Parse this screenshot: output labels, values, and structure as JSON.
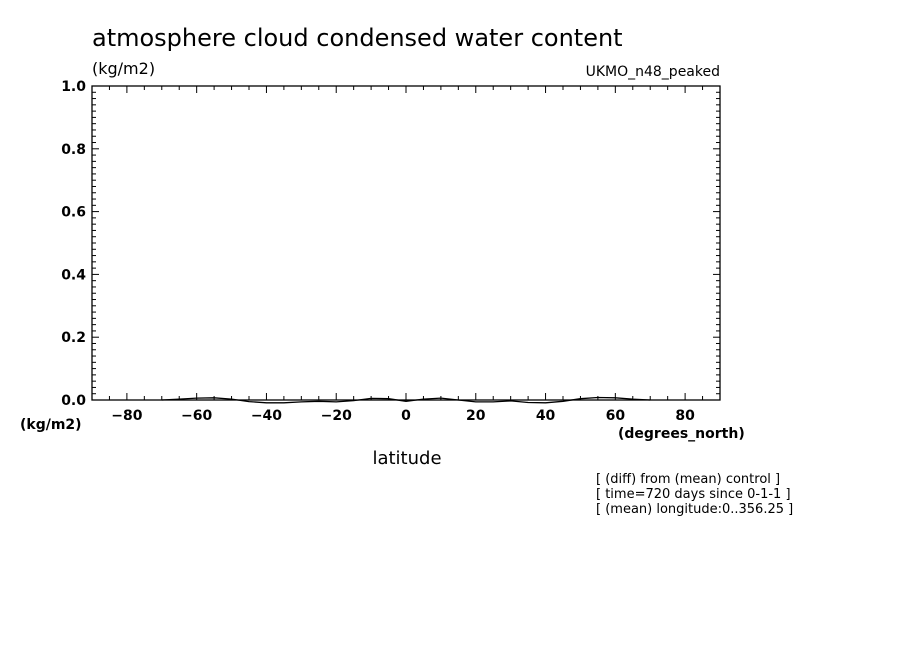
{
  "chart_data": {
    "type": "line",
    "title": "atmosphere cloud condensed water content",
    "units_label": "(kg/m2)",
    "model_label": "UKMO_n48_peaked",
    "ylabel_units": "(kg/m2)",
    "xlabel": "latitude",
    "xlabel_units": "(degrees_north)",
    "xlim": [
      -90,
      90
    ],
    "ylim": [
      0,
      1.0
    ],
    "x_ticks": [
      "-80",
      "-60",
      "-40",
      "-20",
      "0",
      "20",
      "40",
      "60",
      "80"
    ],
    "y_ticks": [
      "0.0",
      "0.2",
      "0.4",
      "0.6",
      "0.8",
      "1.0"
    ],
    "grid": false,
    "series": [
      {
        "x": [
          -70,
          -65,
          -60,
          -55,
          -50,
          -45,
          -40,
          -35,
          -30,
          -25,
          -20,
          -15,
          -10,
          -5,
          0,
          5,
          10,
          15,
          20,
          25,
          30,
          35,
          40,
          45,
          50,
          55,
          60,
          65,
          70
        ],
        "y": [
          0.0,
          0.003,
          0.006,
          0.007,
          0.003,
          -0.005,
          -0.009,
          -0.009,
          -0.006,
          -0.004,
          -0.006,
          -0.002,
          0.005,
          0.004,
          -0.004,
          0.003,
          0.006,
          0.0,
          -0.006,
          -0.006,
          -0.003,
          -0.008,
          -0.009,
          -0.004,
          0.004,
          0.008,
          0.007,
          0.003,
          0.0
        ]
      }
    ],
    "notes": [
      "[ (diff) from (mean) control ]",
      "[ time=720 days since 0-1-1 ]",
      "[ (mean) longitude:0..356.25 ]"
    ]
  }
}
